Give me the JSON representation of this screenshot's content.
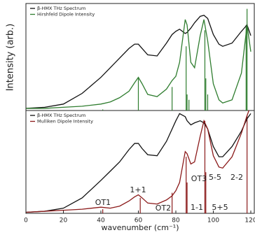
{
  "chart_data": [
    {
      "type": "line",
      "ylabel": "Intensity (arb.)",
      "legend": "upper left",
      "x": [
        0,
        10,
        20,
        30,
        40,
        45,
        50,
        55,
        58,
        60,
        62,
        65,
        70,
        75,
        78,
        80,
        82,
        85,
        86,
        88,
        90,
        93,
        95,
        97,
        100,
        103,
        105,
        110,
        115,
        118,
        120
      ],
      "xlim": [
        0,
        120
      ],
      "ylim": [
        0,
        1
      ],
      "series": [
        {
          "name": "β-HMX THz Spectrum",
          "color": "#111111",
          "values": [
            0.02,
            0.03,
            0.06,
            0.16,
            0.31,
            0.4,
            0.49,
            0.58,
            0.62,
            0.62,
            0.58,
            0.52,
            0.51,
            0.63,
            0.71,
            0.74,
            0.76,
            0.72,
            0.73,
            0.77,
            0.82,
            0.88,
            0.89,
            0.86,
            0.71,
            0.62,
            0.6,
            0.63,
            0.74,
            0.8,
            0.7
          ]
        },
        {
          "name": "Hirshfeld Dipole Intensity",
          "color": "#2f7d2f",
          "values": [
            0.02,
            0.02,
            0.03,
            0.04,
            0.06,
            0.08,
            0.12,
            0.18,
            0.26,
            0.31,
            0.25,
            0.15,
            0.13,
            0.2,
            0.28,
            0.32,
            0.45,
            0.85,
            0.8,
            0.45,
            0.4,
            0.7,
            0.85,
            0.65,
            0.25,
            0.1,
            0.07,
            0.1,
            0.35,
            0.8,
            0.55
          ]
        }
      ],
      "sticks": {
        "color": "#2f7d2f",
        "x": [
          41,
          60,
          78,
          85.5,
          86,
          87,
          95.5,
          96,
          97,
          117.5,
          118
        ],
        "values": [
          0.01,
          0.3,
          0.22,
          0.6,
          0.15,
          0.1,
          0.75,
          0.3,
          0.15,
          0.8,
          0.95
        ]
      }
    },
    {
      "type": "line",
      "xlabel": "wavenumber (cm⁻¹)",
      "legend": "upper left",
      "x": [
        0,
        10,
        20,
        30,
        40,
        45,
        50,
        55,
        58,
        60,
        62,
        65,
        70,
        75,
        78,
        80,
        82,
        85,
        86,
        88,
        90,
        93,
        95,
        97,
        100,
        103,
        105,
        110,
        115,
        118,
        120
      ],
      "xlim": [
        0,
        120
      ],
      "xticks": [
        0,
        20,
        40,
        60,
        80,
        100,
        120
      ],
      "ylim": [
        0,
        1
      ],
      "series": [
        {
          "name": "β-HMX THz Spectrum",
          "color": "#111111",
          "values": [
            0.01,
            0.02,
            0.05,
            0.15,
            0.32,
            0.41,
            0.5,
            0.62,
            0.68,
            0.68,
            0.63,
            0.57,
            0.56,
            0.7,
            0.82,
            0.9,
            0.97,
            0.94,
            0.9,
            0.86,
            0.88,
            0.9,
            0.88,
            0.82,
            0.65,
            0.55,
            0.55,
            0.65,
            0.8,
            0.92,
            0.97
          ]
        },
        {
          "name": "Mulliken Dipole Intensity",
          "color": "#8b1a1a",
          "values": [
            0.01,
            0.02,
            0.03,
            0.04,
            0.06,
            0.05,
            0.07,
            0.12,
            0.16,
            0.18,
            0.15,
            0.1,
            0.09,
            0.13,
            0.17,
            0.22,
            0.3,
            0.6,
            0.58,
            0.48,
            0.5,
            0.75,
            0.9,
            0.82,
            0.56,
            0.45,
            0.44,
            0.55,
            0.78,
            0.95,
            1.05
          ]
        }
      ],
      "sticks": {
        "color": "#8b1a1a",
        "x": [
          41,
          61,
          78,
          85.5,
          86,
          95.5,
          96,
          118
        ],
        "values": [
          0.04,
          0.15,
          0.2,
          0.55,
          0.3,
          0.9,
          0.4,
          0.95
        ]
      },
      "annotations": [
        "OT1",
        "1+1",
        "OT2",
        "OT3",
        "1-1",
        "5-5",
        "5+5",
        "2-2"
      ]
    }
  ]
}
